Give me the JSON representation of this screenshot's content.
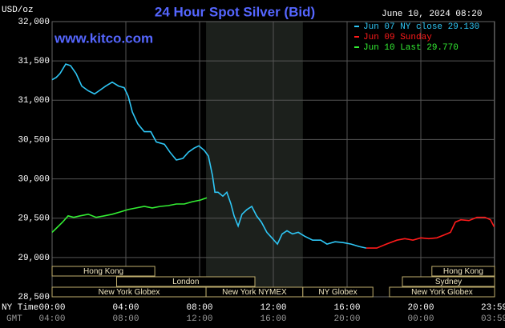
{
  "chart_data": {
    "type": "line",
    "title": "24 Hour Spot Silver (Bid)",
    "y_label": "USD/oz",
    "timestamp": "June 10, 2024 08:20",
    "watermark": "www.kitco.com",
    "x_label": "NY Time",
    "x2_label": "GMT",
    "xlim": [
      0,
      24
    ],
    "ylim": [
      28.5,
      32
    ],
    "xticks": [
      {
        "value": 0,
        "label": "00:00"
      },
      {
        "value": 4,
        "label": "04:00"
      },
      {
        "value": 8,
        "label": "08:00"
      },
      {
        "value": 12,
        "label": "12:00"
      },
      {
        "value": 16,
        "label": "16:00"
      },
      {
        "value": 20,
        "label": "20:00"
      },
      {
        "value": 23.98,
        "label": "23:59"
      }
    ],
    "x2ticks": [
      {
        "value": 0,
        "label": "04:00"
      },
      {
        "value": 4,
        "label": "08:00"
      },
      {
        "value": 8,
        "label": "12:00"
      },
      {
        "value": 12,
        "label": "16:00"
      },
      {
        "value": 16,
        "label": "20:00"
      },
      {
        "value": 20,
        "label": "00:00"
      },
      {
        "value": 23.98,
        "label": "03:59"
      }
    ],
    "yticks": [
      {
        "value": 28.5,
        "label": "28,500"
      },
      {
        "value": 29,
        "label": "29,000"
      },
      {
        "value": 29.5,
        "label": "29,500"
      },
      {
        "value": 30,
        "label": "30,000"
      },
      {
        "value": 30.5,
        "label": "30,500"
      },
      {
        "value": 31,
        "label": "31,000"
      },
      {
        "value": 31.5,
        "label": "31,500"
      },
      {
        "value": 32,
        "label": "32,000"
      }
    ],
    "grid": true,
    "highlight": {
      "start": 8.35,
      "end": 13.6,
      "color": "#1c201c"
    },
    "series": [
      {
        "name": "Jun 07 NY close 29.130",
        "color": "#2ec6f5",
        "x": [
          0,
          0.22,
          0.43,
          0.74,
          1.0,
          1.3,
          1.61,
          1.96,
          2.3,
          2.61,
          2.91,
          3.26,
          3.61,
          3.91,
          4.13,
          4.35,
          4.65,
          5.0,
          5.35,
          5.65,
          6.09,
          6.39,
          6.74,
          7.09,
          7.39,
          7.7,
          7.96,
          8.26,
          8.48,
          8.7,
          8.83,
          9.0,
          9.26,
          9.48,
          9.7,
          9.87,
          10.09,
          10.3,
          10.57,
          10.83,
          11.09,
          11.35,
          11.65,
          11.96,
          12.22,
          12.48,
          12.74,
          13.04,
          13.35,
          13.7,
          14.13,
          14.57,
          14.91,
          15.35,
          15.78,
          16.22,
          16.65,
          17.04
        ],
        "values": [
          31.26,
          31.29,
          31.34,
          31.46,
          31.44,
          31.34,
          31.18,
          31.12,
          31.08,
          31.13,
          31.18,
          31.23,
          31.18,
          31.16,
          31.05,
          30.85,
          30.7,
          30.6,
          30.6,
          30.47,
          30.44,
          30.34,
          30.24,
          30.26,
          30.34,
          30.39,
          30.42,
          30.36,
          30.29,
          30.04,
          29.83,
          29.83,
          29.78,
          29.83,
          29.68,
          29.53,
          29.4,
          29.55,
          29.61,
          29.65,
          29.53,
          29.45,
          29.32,
          29.24,
          29.17,
          29.3,
          29.34,
          29.3,
          29.32,
          29.27,
          29.22,
          29.22,
          29.17,
          29.2,
          29.19,
          29.17,
          29.14,
          29.12
        ]
      },
      {
        "name": "Jun 09 Sunday",
        "color": "#ff1a1a",
        "x": [
          17.04,
          17.61,
          18.13,
          18.7,
          19.13,
          19.57,
          20.0,
          20.43,
          20.87,
          21.3,
          21.61,
          21.87,
          22.17,
          22.61,
          23.04,
          23.48,
          23.78,
          23.98
        ],
        "values": [
          29.12,
          29.12,
          29.17,
          29.22,
          29.24,
          29.22,
          29.25,
          29.24,
          29.25,
          29.29,
          29.32,
          29.45,
          29.48,
          29.47,
          29.51,
          29.51,
          29.48,
          29.39
        ]
      },
      {
        "name": "Jun 10 Last 29.770",
        "color": "#33ee33",
        "x": [
          0,
          0.22,
          0.57,
          0.87,
          1.17,
          1.52,
          1.96,
          2.39,
          2.83,
          3.26,
          3.7,
          4.13,
          4.57,
          5.0,
          5.43,
          5.87,
          6.3,
          6.74,
          7.17,
          7.61,
          8.04,
          8.39
        ],
        "values": [
          29.32,
          29.37,
          29.45,
          29.53,
          29.51,
          29.53,
          29.55,
          29.51,
          29.53,
          29.55,
          29.58,
          29.61,
          29.63,
          29.65,
          29.63,
          29.65,
          29.66,
          29.68,
          29.68,
          29.71,
          29.73,
          29.76
        ]
      }
    ],
    "session_rows": [
      [
        {
          "label": "Hong Kong",
          "start": 0,
          "end": 5.57
        },
        {
          "label": "Hong Kong",
          "start": 20.6,
          "end": 24
        }
      ],
      [
        {
          "label": "London",
          "start": 3.5,
          "end": 11
        },
        {
          "label": "Sydney",
          "start": 19,
          "end": 24
        }
      ],
      [
        {
          "label": "New York Globex",
          "start": 0,
          "end": 8.35
        },
        {
          "label": "New York NYMEX",
          "start": 8.35,
          "end": 13.6
        },
        {
          "label": "NY Globex",
          "start": 13.6,
          "end": 17.4
        },
        {
          "label": "New York Globex",
          "start": 18.3,
          "end": 24
        }
      ]
    ]
  }
}
